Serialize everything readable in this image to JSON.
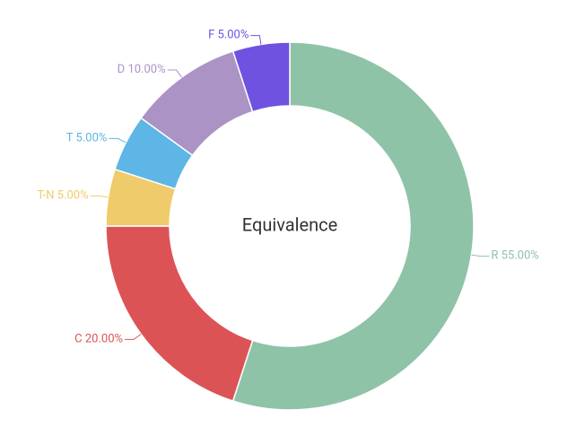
{
  "chart_data": {
    "type": "donut",
    "title": "Equivalence",
    "categories": [
      "R",
      "C",
      "T-N",
      "T",
      "D",
      "F"
    ],
    "values": [
      55,
      20,
      5,
      5,
      10,
      5
    ],
    "value_labels": [
      "55.00%",
      "20.00%",
      "5.00%",
      "5.00%",
      "10.00%",
      "5.00%"
    ],
    "colors": [
      "#8fc3a7",
      "#dc5356",
      "#f0cb6b",
      "#5db6e5",
      "#ab93c6",
      "#6f52df"
    ]
  }
}
